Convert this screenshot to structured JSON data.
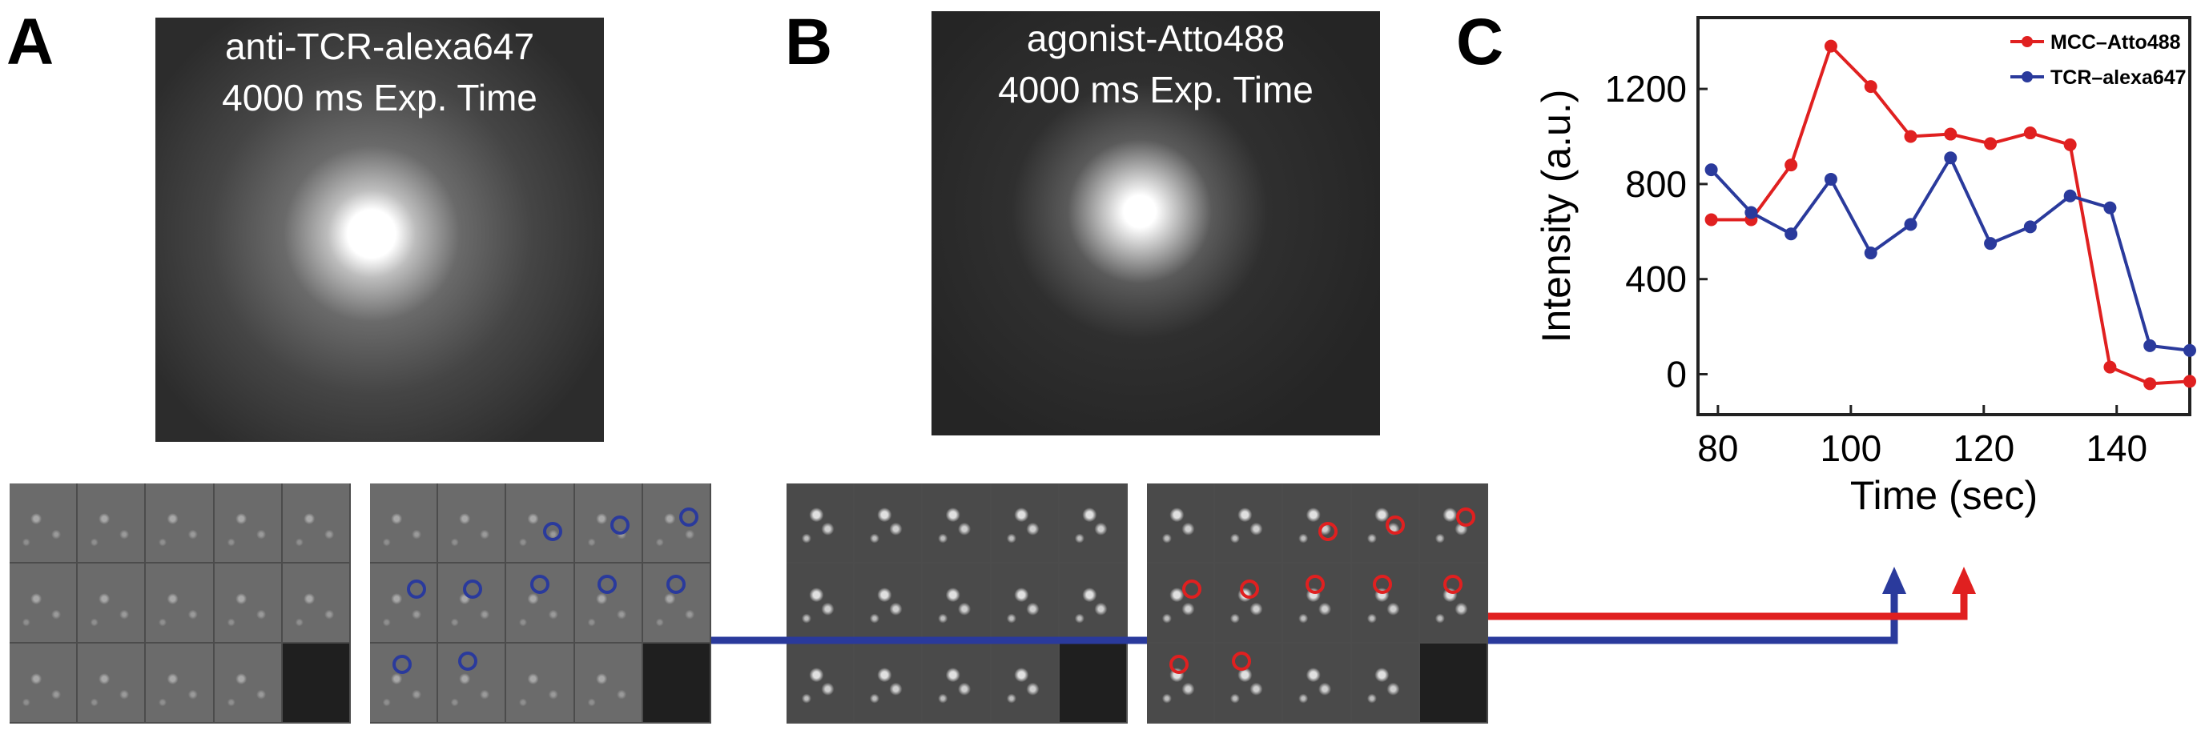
{
  "panels": {
    "a": {
      "letter": "A",
      "caption_line1": "anti-TCR-alexa647",
      "caption_line2": "4000 ms Exp. Time"
    },
    "b": {
      "letter": "B",
      "caption_line1": "agonist-Atto488",
      "caption_line2": "4000 ms Exp. Time"
    },
    "c": {
      "letter": "C"
    }
  },
  "colors": {
    "red": "#e02020",
    "blue": "#2a3a9c"
  },
  "chart_data": {
    "type": "line",
    "title": "",
    "xlabel": "Time (sec)",
    "ylabel": "Intensity (a.u.)",
    "xlim": [
      77,
      151
    ],
    "ylim": [
      -170,
      1500
    ],
    "xticks": [
      "80",
      "100",
      "120",
      "140"
    ],
    "xtick_values": [
      80,
      100,
      120,
      140
    ],
    "yticks": [
      "0",
      "400",
      "800",
      "1200"
    ],
    "ytick_values": [
      0,
      400,
      800,
      1200
    ],
    "legend_position": "top-right",
    "series": [
      {
        "name": "MCC–Atto488",
        "color": "#e02020",
        "x": [
          79,
          85,
          91,
          97,
          103,
          109,
          115,
          121,
          127,
          133,
          139,
          145,
          151
        ],
        "y": [
          650,
          650,
          880,
          1380,
          1210,
          1000,
          1010,
          970,
          1015,
          965,
          30,
          -40,
          -30
        ]
      },
      {
        "name": "TCR–alexa647",
        "color": "#2a3a9c",
        "x": [
          79,
          85,
          91,
          97,
          103,
          109,
          115,
          121,
          127,
          133,
          139,
          145,
          151
        ],
        "y": [
          860,
          680,
          590,
          820,
          510,
          630,
          910,
          550,
          620,
          750,
          700,
          120,
          100
        ]
      }
    ]
  }
}
